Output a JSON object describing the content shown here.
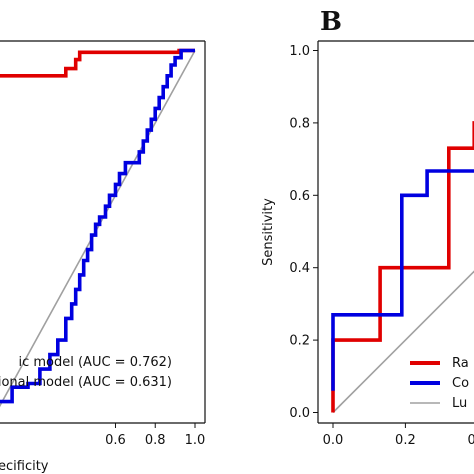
{
  "chart_data": [
    {
      "type": "line",
      "panel": "A",
      "xlabel": "ecificity",
      "ylabel": "",
      "xlim": [
        0.0,
        1.0
      ],
      "ylim": [
        0.0,
        1.0
      ],
      "x_ticks": [
        "0.6",
        "0.8",
        "1.0"
      ],
      "y_ticks": [],
      "series": [
        {
          "name": "ic model (AUC = 0.762)",
          "color": "#e00000",
          "x": [
            -0.05,
            0.35,
            0.35,
            0.36,
            0.4,
            0.4,
            0.42,
            0.42,
            0.92,
            0.92,
            0.95,
            1.0
          ],
          "y": [
            0.93,
            0.93,
            0.95,
            0.95,
            0.95,
            0.975,
            0.975,
            0.995,
            0.995,
            1.0,
            1.0,
            1.0
          ]
        },
        {
          "name": "tional model (AUC = 0.631)",
          "color": "#0000e0",
          "x": [
            -0.05,
            0.0,
            0.0,
            0.08,
            0.08,
            0.16,
            0.16,
            0.22,
            0.22,
            0.27,
            0.27,
            0.31,
            0.31,
            0.35,
            0.35,
            0.38,
            0.38,
            0.4,
            0.4,
            0.42,
            0.42,
            0.44,
            0.44,
            0.46,
            0.46,
            0.48,
            0.48,
            0.5,
            0.5,
            0.52,
            0.52,
            0.55,
            0.55,
            0.57,
            0.57,
            0.6,
            0.6,
            0.62,
            0.62,
            0.65,
            0.65,
            0.72,
            0.72,
            0.74,
            0.74,
            0.76,
            0.76,
            0.78,
            0.78,
            0.8,
            0.8,
            0.82,
            0.82,
            0.84,
            0.84,
            0.86,
            0.86,
            0.88,
            0.88,
            0.9,
            0.9,
            0.93,
            0.93,
            1.0
          ],
          "y": [
            0.0,
            0.0,
            0.03,
            0.03,
            0.07,
            0.07,
            0.08,
            0.08,
            0.12,
            0.12,
            0.16,
            0.16,
            0.2,
            0.2,
            0.26,
            0.26,
            0.3,
            0.3,
            0.34,
            0.34,
            0.38,
            0.38,
            0.42,
            0.42,
            0.45,
            0.45,
            0.49,
            0.49,
            0.52,
            0.52,
            0.54,
            0.54,
            0.57,
            0.57,
            0.6,
            0.6,
            0.63,
            0.63,
            0.66,
            0.66,
            0.69,
            0.69,
            0.72,
            0.72,
            0.75,
            0.75,
            0.78,
            0.78,
            0.81,
            0.81,
            0.84,
            0.84,
            0.87,
            0.87,
            0.9,
            0.9,
            0.93,
            0.93,
            0.96,
            0.96,
            0.98,
            0.98,
            1.0,
            1.0
          ]
        },
        {
          "name": "",
          "color": "#a0a0a0",
          "x": [
            0.0,
            1.0
          ],
          "y": [
            0.0,
            1.0
          ]
        }
      ],
      "legend": {
        "position": "bottom-right",
        "entries": [
          "ic model (AUC = 0.762)",
          "tional model (AUC = 0.631)"
        ]
      },
      "grid": false
    },
    {
      "type": "line",
      "panel": "B",
      "xlabel": "",
      "ylabel": "Sensitivity",
      "xlim": [
        0.0,
        1.0
      ],
      "ylim": [
        0.0,
        1.0
      ],
      "x_ticks": [
        "0.0",
        "0.2",
        "0.4"
      ],
      "y_ticks": [
        "0.0",
        "0.2",
        "0.4",
        "0.6",
        "0.8",
        "1.0"
      ],
      "series": [
        {
          "name": "Ra",
          "color": "#e00000",
          "x": [
            0.0,
            0.0,
            0.13,
            0.13,
            0.32,
            0.32,
            0.39,
            0.39,
            0.46,
            0.46
          ],
          "y": [
            0.0,
            0.2,
            0.2,
            0.4,
            0.4,
            0.73,
            0.73,
            0.8,
            0.8,
            0.85
          ]
        },
        {
          "name": "Co",
          "color": "#0000e0",
          "x": [
            0.0,
            0.0,
            0.19,
            0.19,
            0.26,
            0.26,
            0.46
          ],
          "y": [
            0.06,
            0.27,
            0.27,
            0.6,
            0.6,
            0.667,
            0.667
          ]
        },
        {
          "name": "Lu",
          "color": "#a0a0a0",
          "x": [
            0.0,
            0.46
          ],
          "y": [
            0.0,
            0.46
          ]
        }
      ],
      "legend": {
        "position": "bottom-right",
        "entries": [
          "Ra",
          "Co",
          "Lu"
        ]
      },
      "grid": false
    }
  ],
  "panel_letter_b": "B"
}
